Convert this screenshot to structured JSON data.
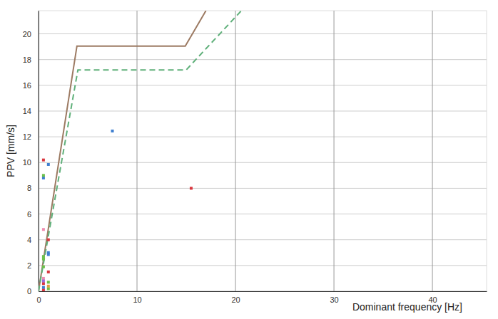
{
  "chart_data": {
    "type": "scatter",
    "x_label": "Dominant frequency [Hz]",
    "y_label": "PPV [mm/s]",
    "xlim": [
      0,
      45.5
    ],
    "ylim": [
      0,
      21.8
    ],
    "xticks": [
      0,
      10,
      20,
      30,
      40
    ],
    "yticks": [
      0,
      2,
      4,
      6,
      8,
      10,
      12,
      14,
      16,
      18,
      20
    ],
    "grid": true,
    "series": [
      {
        "type": "line",
        "color": "#9c7a62",
        "line_style": "solid",
        "x": [
          0,
          3.9,
          14.9,
          17.0
        ],
        "values": [
          0,
          19.05,
          19.05,
          21.8
        ]
      },
      {
        "type": "line",
        "color": "#5fb07a",
        "line_style": "dashed",
        "x": [
          0,
          4.0,
          15.0,
          20.6
        ],
        "values": [
          0,
          17.2,
          17.2,
          21.8
        ]
      },
      {
        "type": "scatter",
        "marker": "square",
        "color": "#d9363e",
        "x": [
          0.5,
          15.5,
          1.0,
          1.0,
          0.5,
          0.5
        ],
        "values": [
          10.2,
          8.0,
          4.0,
          1.5,
          0.6,
          0.1
        ]
      },
      {
        "type": "scatter",
        "marker": "square",
        "color": "#3f7fd0",
        "x": [
          1.0,
          0.5,
          7.5,
          1.0,
          1.0,
          0.5
        ],
        "values": [
          9.85,
          8.8,
          12.45,
          3.0,
          2.85,
          0.3
        ]
      },
      {
        "type": "scatter",
        "marker": "square",
        "color": "#6bc04b",
        "x": [
          0.5,
          0.5,
          0.5,
          0.5,
          1.0,
          1.0
        ],
        "values": [
          9.0,
          2.7,
          2.5,
          1.9,
          0.7,
          0.2
        ]
      },
      {
        "type": "scatter",
        "marker": "square",
        "color": "#f08db0",
        "x": [
          0.5,
          0.5
        ],
        "values": [
          4.8,
          1.0
        ]
      },
      {
        "type": "scatter",
        "marker": "square",
        "color": "#9b6bd6",
        "x": [
          0.5
        ],
        "values": [
          0.8
        ]
      },
      {
        "type": "scatter",
        "marker": "square",
        "color": "#e0a040",
        "x": [
          1.0
        ],
        "values": [
          0.4
        ]
      }
    ]
  }
}
